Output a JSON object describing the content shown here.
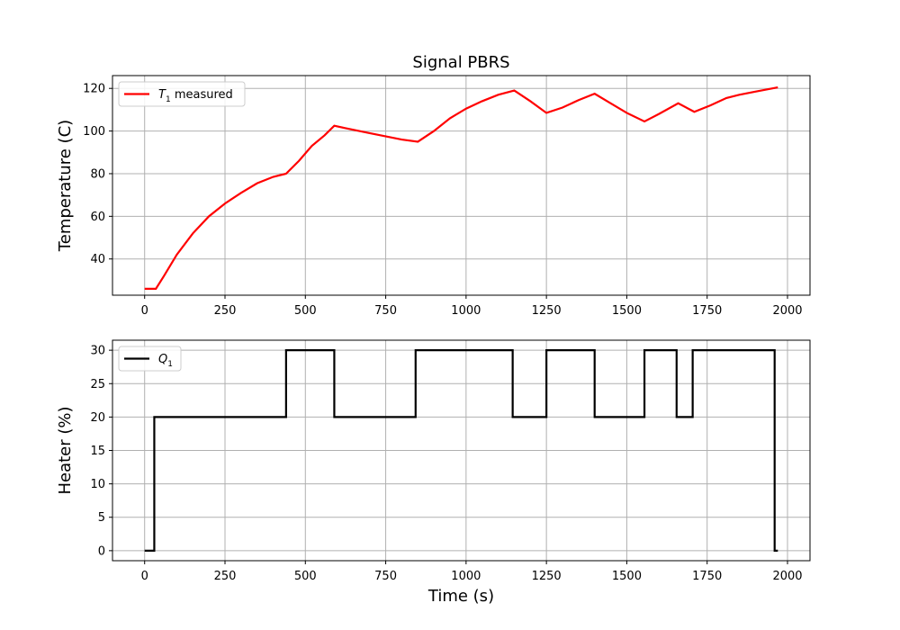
{
  "colors": {
    "temperature": "#ff0000",
    "heater": "#000000",
    "grid": "#b0b0b0"
  },
  "chart_data": [
    {
      "type": "line",
      "title": "Signal PBRS",
      "xlabel": "",
      "ylabel": "Temperature (C)",
      "xlim": [
        -100,
        2070
      ],
      "ylim": [
        23,
        126
      ],
      "xticks": [
        0,
        250,
        500,
        750,
        1000,
        1250,
        1500,
        1750,
        2000
      ],
      "yticks": [
        40,
        60,
        80,
        100,
        120
      ],
      "grid": true,
      "legend": "top-left",
      "series": [
        {
          "name": "T1 measured",
          "legend_main": "T",
          "legend_sub": "1",
          "legend_suffix": " measured",
          "color": "#ff0000",
          "x": [
            0,
            35,
            60,
            100,
            150,
            200,
            250,
            300,
            350,
            400,
            440,
            480,
            520,
            560,
            590,
            620,
            700,
            800,
            850,
            900,
            950,
            1000,
            1050,
            1100,
            1150,
            1200,
            1250,
            1300,
            1350,
            1400,
            1450,
            1500,
            1555,
            1600,
            1660,
            1710,
            1760,
            1810,
            1850,
            1900,
            1970
          ],
          "y": [
            26,
            26,
            32,
            42,
            52,
            60,
            66,
            71,
            75.5,
            78.5,
            80,
            86,
            93,
            98,
            102.5,
            101.5,
            99,
            96,
            95,
            100,
            106,
            110.5,
            114,
            117,
            119,
            114,
            108.5,
            111,
            114.5,
            117.5,
            113,
            108.5,
            104.5,
            108,
            113,
            109,
            112,
            115.5,
            117,
            118.5,
            120.5
          ]
        }
      ]
    },
    {
      "type": "line",
      "title": "",
      "xlabel": "Time (s)",
      "ylabel": "Heater (%)",
      "xlim": [
        -100,
        2070
      ],
      "ylim": [
        -1.5,
        31.5
      ],
      "xticks": [
        0,
        250,
        500,
        750,
        1000,
        1250,
        1500,
        1750,
        2000
      ],
      "yticks": [
        0,
        5,
        10,
        15,
        20,
        25,
        30
      ],
      "grid": true,
      "legend": "top-left",
      "series": [
        {
          "name": "Q1",
          "legend_main": "Q",
          "legend_sub": "1",
          "legend_suffix": "",
          "color": "#000000",
          "x": [
            0,
            30,
            30,
            440,
            440,
            590,
            590,
            843,
            843,
            1145,
            1145,
            1250,
            1250,
            1400,
            1400,
            1555,
            1555,
            1655,
            1655,
            1705,
            1705,
            1960,
            1960,
            1970
          ],
          "y": [
            0,
            0,
            20,
            20,
            30,
            30,
            20,
            20,
            30,
            30,
            20,
            20,
            30,
            30,
            20,
            20,
            30,
            30,
            20,
            20,
            30,
            30,
            0,
            0
          ]
        }
      ]
    }
  ]
}
